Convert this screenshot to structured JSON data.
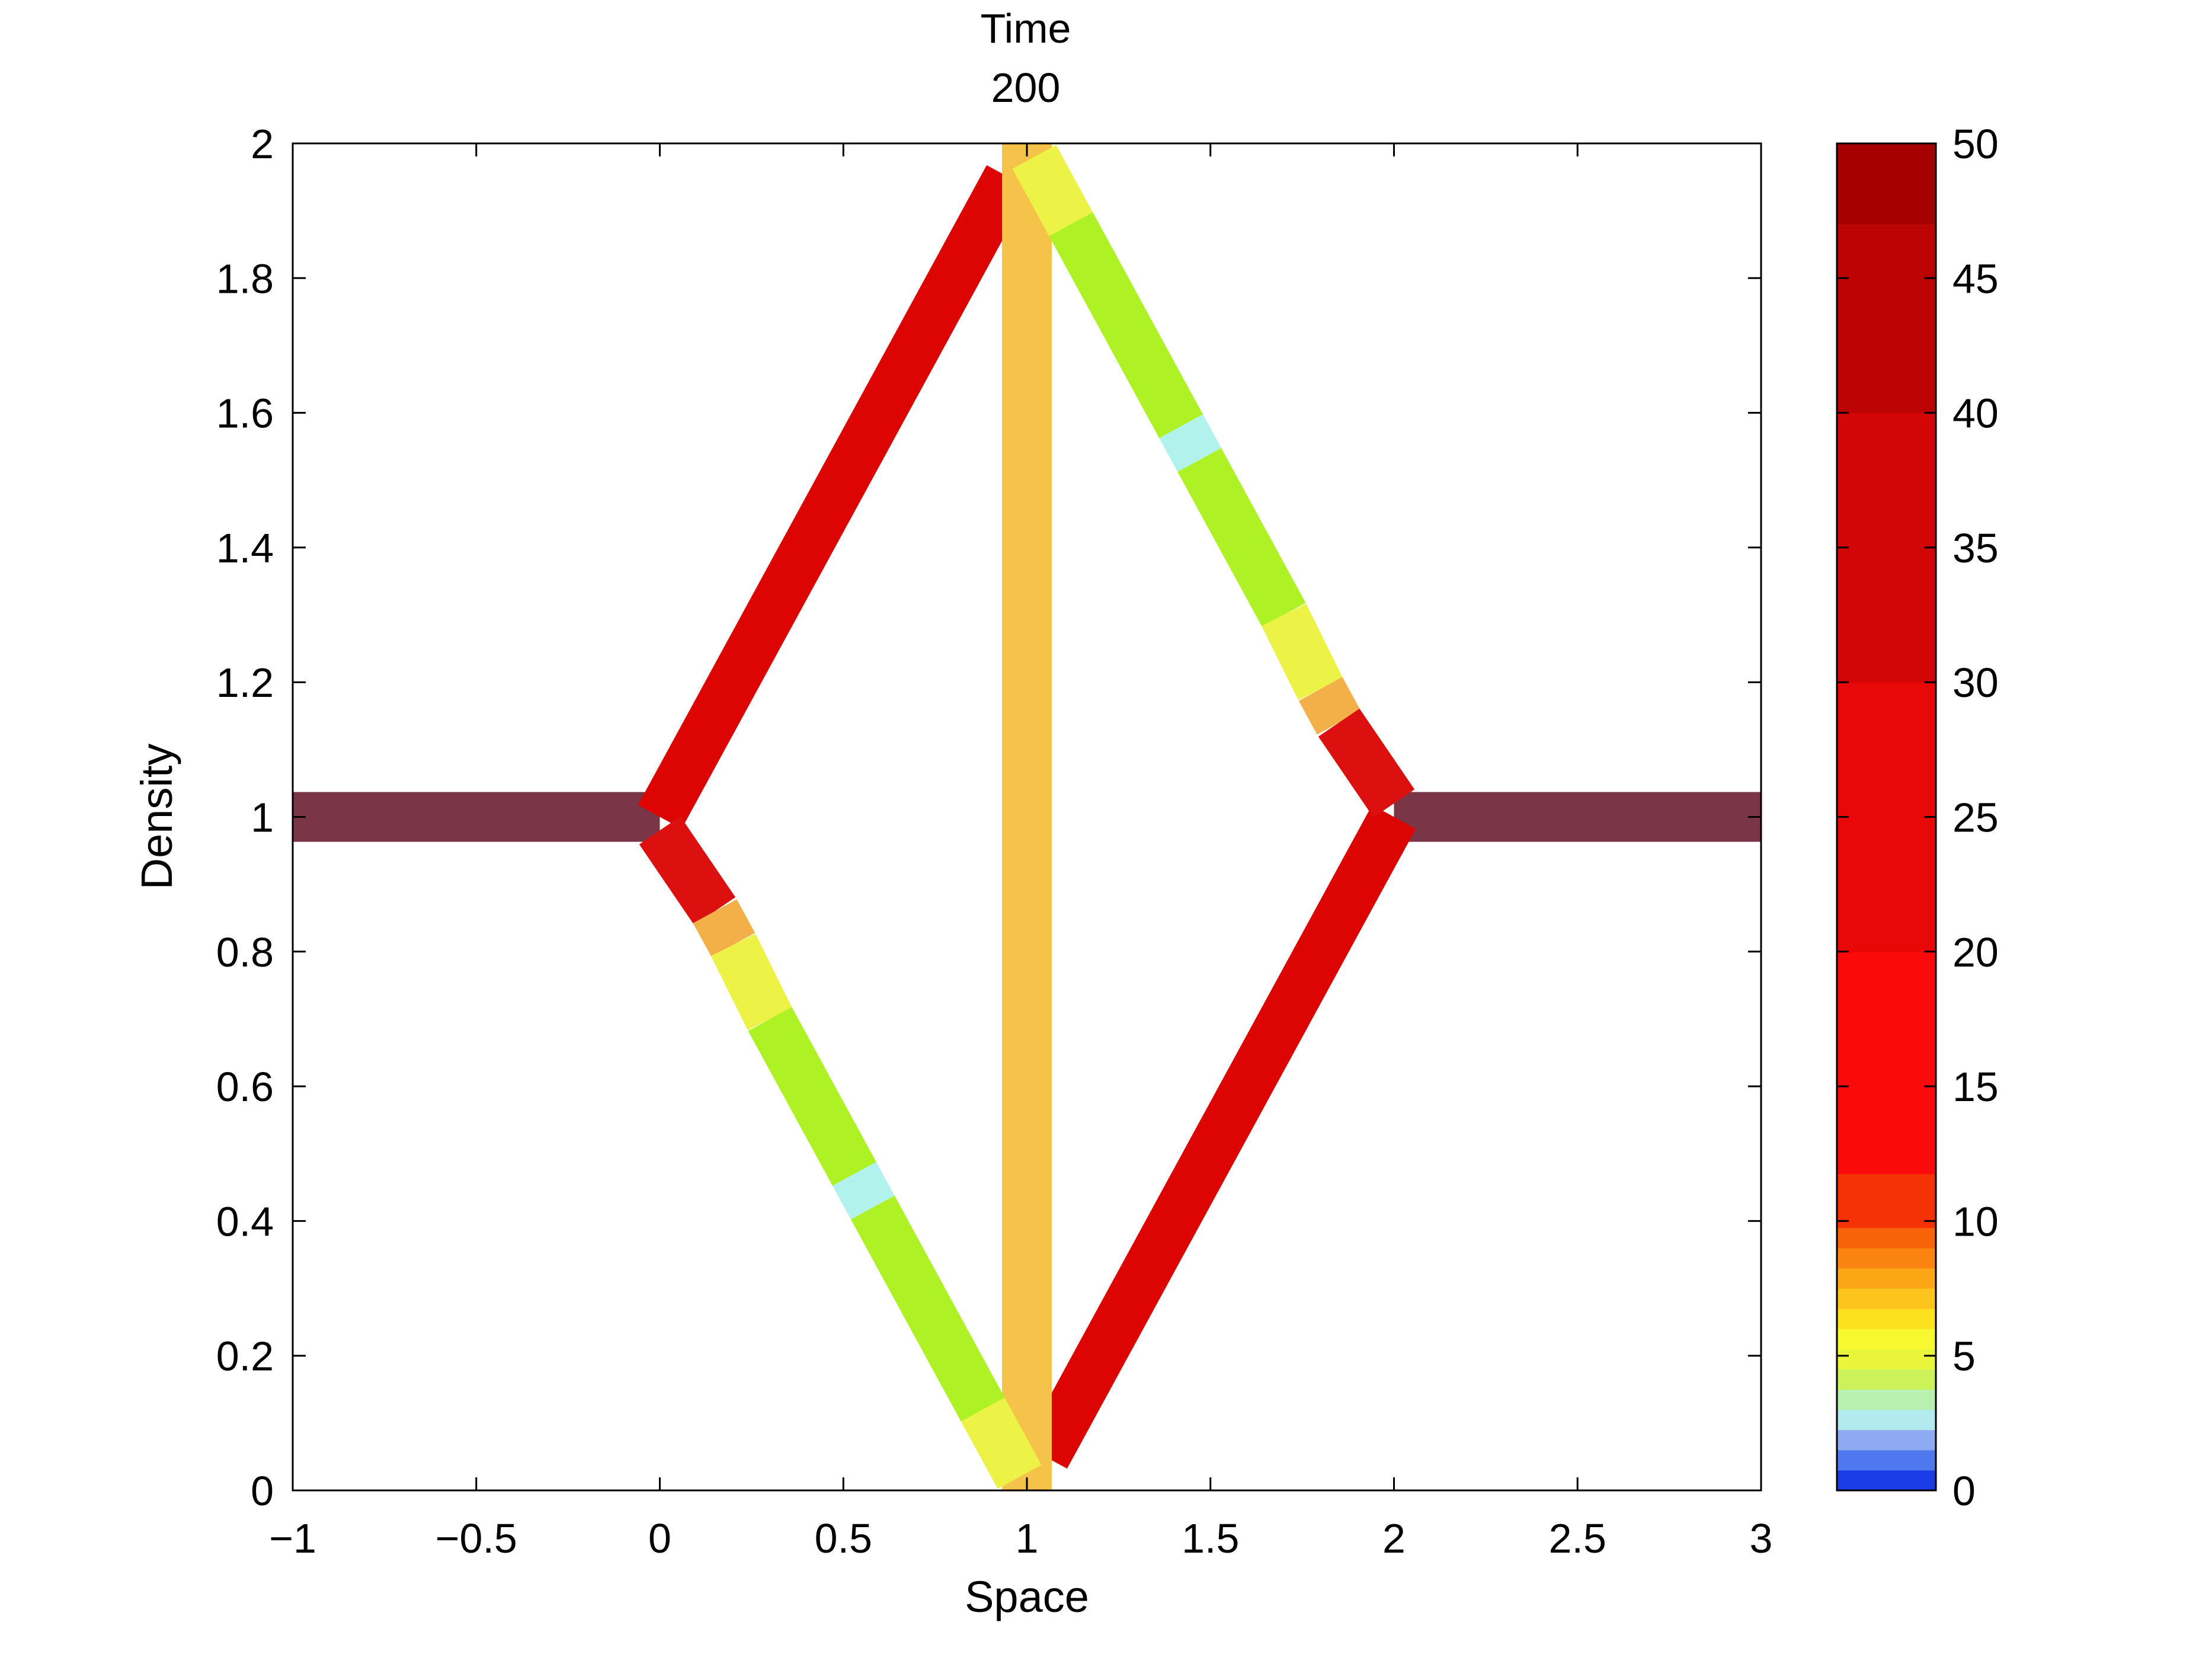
{
  "chart_data": {
    "type": "line",
    "title_lines": [
      "Time",
      "200"
    ],
    "xlabel": "Space",
    "ylabel": "Density",
    "xlim": [
      -1,
      3
    ],
    "ylim": [
      0,
      2
    ],
    "x_ticks": [
      -1,
      -0.5,
      0,
      0.5,
      1,
      1.5,
      2,
      2.5,
      3
    ],
    "x_tick_labels": [
      "−1",
      "−0.5",
      "0",
      "0.5",
      "1",
      "1.5",
      "2",
      "2.5",
      "3"
    ],
    "y_ticks": [
      0,
      0.2,
      0.4,
      0.6,
      0.8,
      1,
      1.2,
      1.4,
      1.6,
      1.8,
      2
    ],
    "y_tick_labels": [
      "0",
      "0.2",
      "0.4",
      "0.6",
      "0.8",
      "1",
      "1.2",
      "1.4",
      "1.6",
      "1.8",
      "2"
    ],
    "grid": false,
    "colorbar": {
      "range": [
        0,
        50
      ],
      "ticks": [
        0,
        5,
        10,
        15,
        20,
        25,
        30,
        35,
        40,
        45,
        50
      ],
      "tick_labels": [
        "0",
        "5",
        "10",
        "15",
        "20",
        "25",
        "30",
        "35",
        "40",
        "45",
        "50"
      ],
      "bands": [
        {
          "from": 0,
          "to": 0.75,
          "color": "#1a3ce6"
        },
        {
          "from": 0.75,
          "to": 1.5,
          "color": "#4f78ee"
        },
        {
          "from": 1.5,
          "to": 2.25,
          "color": "#8eaaf2"
        },
        {
          "from": 2.25,
          "to": 3.0,
          "color": "#b2eaf0"
        },
        {
          "from": 3.0,
          "to": 3.75,
          "color": "#b8f0b0"
        },
        {
          "from": 3.75,
          "to": 4.5,
          "color": "#ccf25a"
        },
        {
          "from": 4.5,
          "to": 5.25,
          "color": "#e8f53a"
        },
        {
          "from": 5.25,
          "to": 6.0,
          "color": "#f8f830"
        },
        {
          "from": 6.0,
          "to": 6.75,
          "color": "#fbe11e"
        },
        {
          "from": 6.75,
          "to": 7.5,
          "color": "#fcc41c"
        },
        {
          "from": 7.5,
          "to": 8.25,
          "color": "#fba614"
        },
        {
          "from": 8.25,
          "to": 9.0,
          "color": "#fb8410"
        },
        {
          "from": 9.0,
          "to": 9.75,
          "color": "#f8630a"
        },
        {
          "from": 9.75,
          "to": 11.75,
          "color": "#f43206"
        },
        {
          "from": 11.75,
          "to": 20.0,
          "color": "#fa0a0a"
        },
        {
          "from": 20.0,
          "to": 30.0,
          "color": "#e80808"
        },
        {
          "from": 30.0,
          "to": 40.0,
          "color": "#d20606"
        },
        {
          "from": 40.0,
          "to": 47.0,
          "color": "#bc0404"
        },
        {
          "from": 47.0,
          "to": 50.0,
          "color": "#a60000"
        }
      ]
    },
    "segments": [
      {
        "from": [
          -1,
          1
        ],
        "to": [
          0,
          1
        ],
        "color": "#7a3646"
      },
      {
        "from": [
          2,
          1
        ],
        "to": [
          3,
          1
        ],
        "color": "#7a3646"
      },
      {
        "from": [
          0,
          1
        ],
        "to": [
          0.95,
          1.95
        ],
        "color": "#dd0404"
      },
      {
        "from": [
          1.05,
          0.05
        ],
        "to": [
          2,
          1
        ],
        "color": "#dd0404"
      },
      {
        "from": [
          1,
          0
        ],
        "to": [
          1,
          2
        ],
        "color": "#f5c24a"
      },
      {
        "from": [
          0,
          0.98
        ],
        "to": [
          0.15,
          0.86
        ],
        "color": "#dd1010"
      },
      {
        "from": [
          0.15,
          0.86
        ],
        "to": [
          0.2,
          0.81
        ],
        "color": "#f3b049"
      },
      {
        "from": [
          0.2,
          0.81
        ],
        "to": [
          0.3,
          0.7
        ],
        "color": "#ecf246"
      },
      {
        "from": [
          0.3,
          0.7
        ],
        "to": [
          0.53,
          0.47
        ],
        "color": "#aef226"
      },
      {
        "from": [
          0.53,
          0.47
        ],
        "to": [
          0.58,
          0.42
        ],
        "color": "#b2f2ec"
      },
      {
        "from": [
          0.58,
          0.42
        ],
        "to": [
          0.88,
          0.12
        ],
        "color": "#aef226"
      },
      {
        "from": [
          0.88,
          0.12
        ],
        "to": [
          0.98,
          0.02
        ],
        "color": "#ecf246"
      },
      {
        "from": [
          1.02,
          1.98
        ],
        "to": [
          1.12,
          1.88
        ],
        "color": "#ecf246"
      },
      {
        "from": [
          1.12,
          1.88
        ],
        "to": [
          1.42,
          1.58
        ],
        "color": "#aef226"
      },
      {
        "from": [
          1.42,
          1.58
        ],
        "to": [
          1.47,
          1.53
        ],
        "color": "#b2f2ec"
      },
      {
        "from": [
          1.47,
          1.53
        ],
        "to": [
          1.7,
          1.3
        ],
        "color": "#aef226"
      },
      {
        "from": [
          1.7,
          1.3
        ],
        "to": [
          1.8,
          1.19
        ],
        "color": "#ecf246"
      },
      {
        "from": [
          1.8,
          1.19
        ],
        "to": [
          1.85,
          1.14
        ],
        "color": "#f3b049"
      },
      {
        "from": [
          1.85,
          1.14
        ],
        "to": [
          2,
          1.02
        ],
        "color": "#dd1010"
      }
    ]
  }
}
